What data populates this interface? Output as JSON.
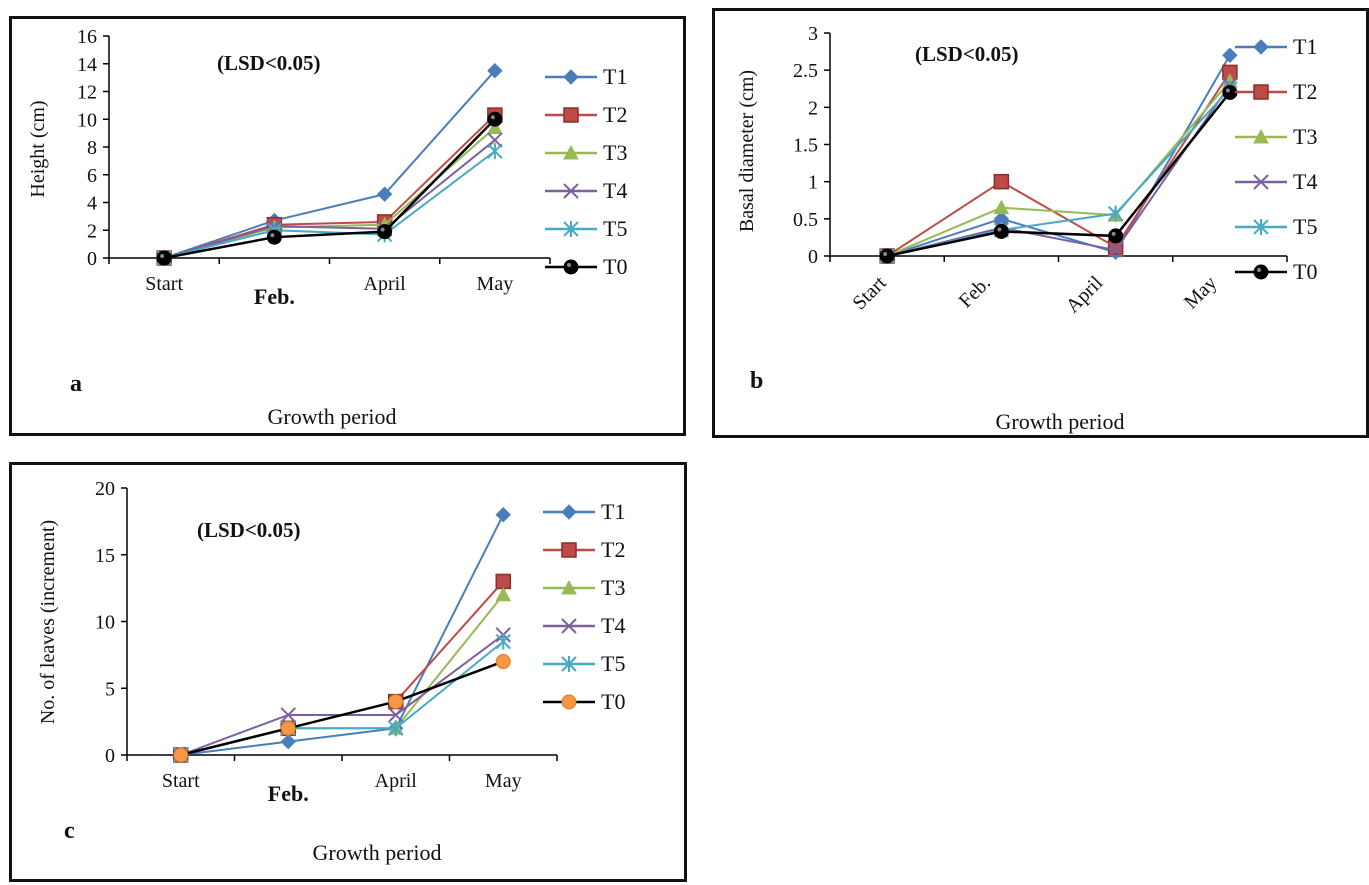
{
  "chart_data": [
    {
      "panel": "a",
      "type": "line",
      "annotation": "(LSD<0.05)",
      "xlabel": "Growth period",
      "ylabel": "Height (cm)",
      "categories": [
        "Start",
        "Feb.",
        "April",
        "May"
      ],
      "ylim": [
        0,
        16
      ],
      "yticks": [
        0,
        2,
        4,
        6,
        8,
        10,
        12,
        14,
        16
      ],
      "legend": "right",
      "grid": false,
      "series": [
        {
          "name": "T1",
          "color": "#4a7ebb",
          "marker": "diamond",
          "values": [
            0,
            2.7,
            4.6,
            13.5
          ]
        },
        {
          "name": "T2",
          "color": "#be4b48",
          "marker": "square",
          "values": [
            0,
            2.4,
            2.6,
            10.3
          ]
        },
        {
          "name": "T3",
          "color": "#98b954",
          "marker": "triangle",
          "values": [
            0,
            2.2,
            2.4,
            9.4
          ]
        },
        {
          "name": "T4",
          "color": "#7d60a0",
          "marker": "x",
          "values": [
            0,
            2.3,
            2.1,
            8.5
          ]
        },
        {
          "name": "T5",
          "color": "#46aac5",
          "marker": "star",
          "values": [
            0,
            2.0,
            1.7,
            7.7
          ]
        },
        {
          "name": "T0",
          "color": "#000000",
          "marker": "circle",
          "values": [
            0,
            1.5,
            1.9,
            10.0
          ]
        }
      ]
    },
    {
      "panel": "b",
      "type": "line",
      "annotation": "(LSD<0.05)",
      "xlabel": "Growth period",
      "ylabel": "Basal diameter (cm)",
      "categories": [
        "Start",
        "Feb.",
        "April",
        "May"
      ],
      "ylim": [
        0,
        3
      ],
      "yticks": [
        "0",
        "0.5",
        "1",
        "1.5",
        "2",
        "2.5",
        "3"
      ],
      "legend": "right",
      "grid": false,
      "series": [
        {
          "name": "T1",
          "color": "#4a7ebb",
          "marker": "diamond",
          "values": [
            0,
            0.5,
            0.05,
            2.7
          ]
        },
        {
          "name": "T2",
          "color": "#be4b48",
          "marker": "square",
          "values": [
            0,
            1.0,
            0.12,
            2.47
          ]
        },
        {
          "name": "T3",
          "color": "#98b954",
          "marker": "triangle",
          "values": [
            0,
            0.65,
            0.55,
            2.35
          ]
        },
        {
          "name": "T4",
          "color": "#7d60a0",
          "marker": "x",
          "values": [
            0,
            0.38,
            0.08,
            2.3
          ]
        },
        {
          "name": "T5",
          "color": "#46aac5",
          "marker": "star",
          "values": [
            0,
            0.35,
            0.57,
            2.25
          ]
        },
        {
          "name": "T0",
          "color": "#000000",
          "marker": "circle",
          "values": [
            0,
            0.33,
            0.27,
            2.2
          ]
        }
      ]
    },
    {
      "panel": "c",
      "type": "line",
      "annotation": "(LSD<0.05)",
      "xlabel": "Growth period",
      "ylabel": "No. of leaves (increment)",
      "categories": [
        "Start",
        "Feb.",
        "April",
        "May"
      ],
      "ylim": [
        0,
        20
      ],
      "yticks": [
        0,
        5,
        10,
        15,
        20
      ],
      "legend": "right",
      "grid": false,
      "series": [
        {
          "name": "T1",
          "color": "#4a7ebb",
          "marker": "diamond",
          "values": [
            0,
            1,
            2,
            18
          ]
        },
        {
          "name": "T2",
          "color": "#be4b48",
          "marker": "square",
          "values": [
            0,
            2,
            4,
            13
          ]
        },
        {
          "name": "T3",
          "color": "#98b954",
          "marker": "triangle",
          "values": [
            0,
            2,
            2,
            12
          ]
        },
        {
          "name": "T4",
          "color": "#7d60a0",
          "marker": "x",
          "values": [
            0,
            3,
            3,
            9
          ]
        },
        {
          "name": "T5",
          "color": "#46aac5",
          "marker": "star",
          "values": [
            0,
            2,
            2,
            8.5
          ]
        },
        {
          "name": "T0",
          "color": "#000000",
          "marker": "circle",
          "values": [
            0,
            2,
            4,
            7
          ],
          "marker_fill": "#f79646"
        }
      ]
    }
  ]
}
